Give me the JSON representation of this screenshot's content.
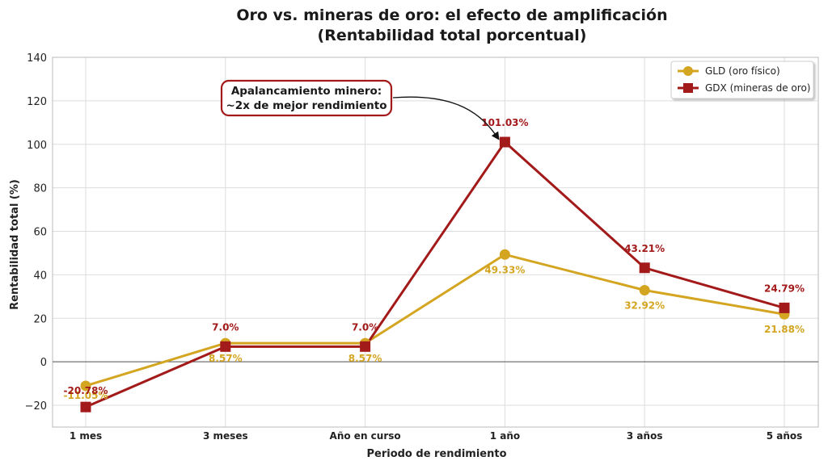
{
  "chart_data": {
    "type": "line",
    "title": "Oro vs. mineras de oro: el efecto de amplificación",
    "subtitle": "(Rentabilidad total porcentual)",
    "xlabel": "Periodo de rendimiento",
    "ylabel": "Rentabilidad total (%)",
    "categories": [
      "1 mes",
      "3 meses",
      "Año en curso",
      "1 año",
      "3 años",
      "5 años"
    ],
    "ylim": [
      -30,
      140
    ],
    "yticks": [
      -20,
      0,
      20,
      40,
      60,
      80,
      100,
      120,
      140
    ],
    "grid": true,
    "legend_position": "top-right",
    "series": [
      {
        "name": "GLD (oro físico)",
        "color": "#d4a520",
        "marker": "circle",
        "values": [
          -11.05,
          8.57,
          8.57,
          49.33,
          32.92,
          21.88
        ],
        "labels": [
          "-11.05%",
          "8.57%",
          "8.57%",
          "49.33%",
          "32.92%",
          "21.88%"
        ]
      },
      {
        "name": "GDX (mineras de oro)",
        "color": "#a31a1a",
        "marker": "square",
        "values": [
          -20.78,
          7.0,
          7.0,
          101.03,
          43.21,
          24.79
        ],
        "labels": [
          "-20.78%",
          "7.0%",
          "7.0%",
          "101.03%",
          "43.21%",
          "24.79%"
        ]
      }
    ],
    "annotation": {
      "lines": [
        "Apalancamiento minero:",
        "~2x de mejor rendimiento"
      ],
      "target_category": "1 año",
      "target_series": "GDX (mineras de oro)"
    }
  }
}
